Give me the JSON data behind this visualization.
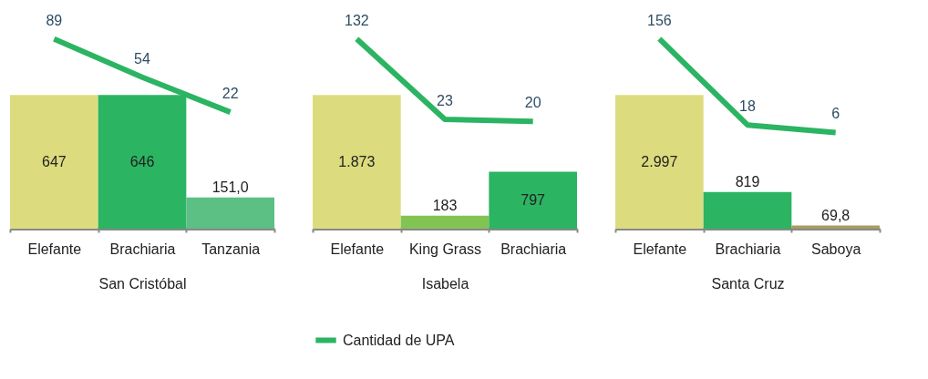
{
  "chart_data": [
    {
      "type": "bar",
      "xlabel": "San Cristóbal",
      "categories": [
        "Elefante",
        "Brachiaria",
        "Tanzania"
      ],
      "grid": false,
      "series": [
        {
          "colors": [
            "#dcdc7e",
            "#2bb462",
            "#5cbf84"
          ],
          "values": [
            647,
            646,
            151.0
          ],
          "value_labels": [
            "647",
            "646",
            "151,0"
          ]
        },
        {
          "type": "line",
          "axis": "y2",
          "color": "#2bb462",
          "values": [
            89,
            54,
            22
          ],
          "value_labels": [
            "89",
            "54",
            "22"
          ]
        }
      ]
    },
    {
      "type": "bar",
      "xlabel": "Isabela",
      "categories": [
        "Elefante",
        "King Grass",
        "Brachiaria"
      ],
      "grid": false,
      "legend": "bottom",
      "series": [
        {
          "colors": [
            "#dcdc7e",
            "#82c454",
            "#2bb462"
          ],
          "values": [
            1873,
            183,
            797
          ],
          "value_labels": [
            "1.873",
            "183",
            "797"
          ]
        },
        {
          "type": "line",
          "axis": "y2",
          "name": "Cantidad de UPA",
          "color": "#2bb462",
          "values": [
            132,
            23,
            20
          ],
          "value_labels": [
            "132",
            "23",
            "20"
          ]
        }
      ]
    },
    {
      "type": "bar",
      "xlabel": "Santa Cruz",
      "categories": [
        "Elefante",
        "Brachiaria",
        "Saboya"
      ],
      "grid": false,
      "series": [
        {
          "colors": [
            "#dcdc7e",
            "#2bb462",
            "#a89d62"
          ],
          "values": [
            2997,
            819,
            69.8
          ],
          "value_labels": [
            "2.997",
            "819",
            "69,8"
          ]
        },
        {
          "type": "line",
          "axis": "y2",
          "color": "#2bb462",
          "values": [
            156,
            18,
            6
          ],
          "value_labels": [
            "156",
            "18",
            "6"
          ]
        }
      ]
    }
  ]
}
